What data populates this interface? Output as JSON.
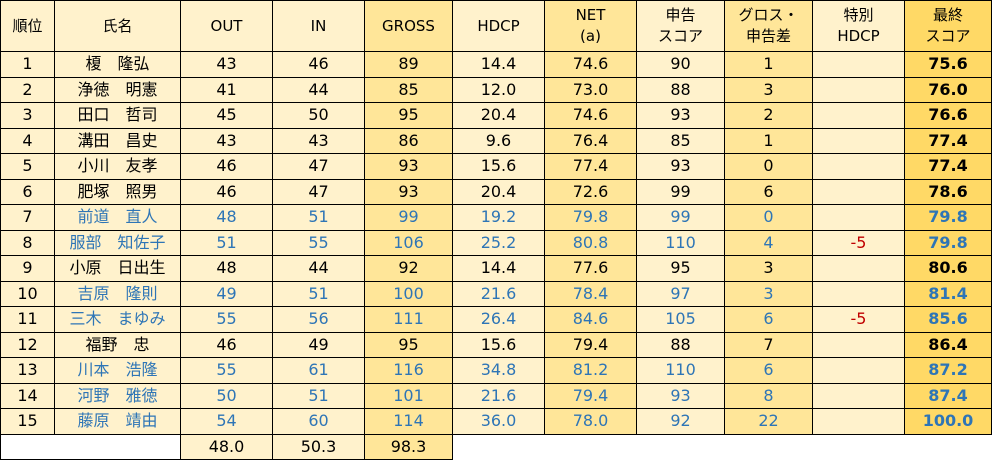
{
  "headers": {
    "rank": "順位",
    "name": "氏名",
    "out": "OUT",
    "in": "IN",
    "gross": "GROSS",
    "hdcp": "HDCP",
    "net_line1": "NET",
    "net_line2": "(a)",
    "declared_line1": "申告",
    "declared_line2": "スコア",
    "diff_line1": "グロス・",
    "diff_line2": "申告差",
    "special_line1": "特別",
    "special_line2": "HDCP",
    "final_line1": "最終",
    "final_line2": "スコア"
  },
  "rows": [
    {
      "rank": "1",
      "name": "榎　隆弘",
      "out": "43",
      "in": "46",
      "gross": "89",
      "hdcp": "14.4",
      "net": "74.6",
      "declared": "90",
      "diff": "1",
      "special": "",
      "final": "75.6",
      "blue": false
    },
    {
      "rank": "2",
      "name": "浄徳　明憲",
      "out": "41",
      "in": "44",
      "gross": "85",
      "hdcp": "12.0",
      "net": "73.0",
      "declared": "88",
      "diff": "3",
      "special": "",
      "final": "76.0",
      "blue": false
    },
    {
      "rank": "3",
      "name": "田口　哲司",
      "out": "45",
      "in": "50",
      "gross": "95",
      "hdcp": "20.4",
      "net": "74.6",
      "declared": "93",
      "diff": "2",
      "special": "",
      "final": "76.6",
      "blue": false
    },
    {
      "rank": "4",
      "name": "溝田　昌史",
      "out": "43",
      "in": "43",
      "gross": "86",
      "hdcp": "9.6",
      "net": "76.4",
      "declared": "85",
      "diff": "1",
      "special": "",
      "final": "77.4",
      "blue": false
    },
    {
      "rank": "5",
      "name": "小川　友孝",
      "out": "46",
      "in": "47",
      "gross": "93",
      "hdcp": "15.6",
      "net": "77.4",
      "declared": "93",
      "diff": "0",
      "special": "",
      "final": "77.4",
      "blue": false
    },
    {
      "rank": "6",
      "name": "肥塚　照男",
      "out": "46",
      "in": "47",
      "gross": "93",
      "hdcp": "20.4",
      "net": "72.6",
      "declared": "99",
      "diff": "6",
      "special": "",
      "final": "78.6",
      "blue": false
    },
    {
      "rank": "7",
      "name": "前道　直人",
      "out": "48",
      "in": "51",
      "gross": "99",
      "hdcp": "19.2",
      "net": "79.8",
      "declared": "99",
      "diff": "0",
      "special": "",
      "final": "79.8",
      "blue": true
    },
    {
      "rank": "8",
      "name": "服部　知佐子",
      "out": "51",
      "in": "55",
      "gross": "106",
      "hdcp": "25.2",
      "net": "80.8",
      "declared": "110",
      "diff": "4",
      "special": "-5",
      "final": "79.8",
      "blue": true
    },
    {
      "rank": "9",
      "name": "小原　日出生",
      "out": "48",
      "in": "44",
      "gross": "92",
      "hdcp": "14.4",
      "net": "77.6",
      "declared": "95",
      "diff": "3",
      "special": "",
      "final": "80.6",
      "blue": false
    },
    {
      "rank": "10",
      "name": "吉原　隆則",
      "out": "49",
      "in": "51",
      "gross": "100",
      "hdcp": "21.6",
      "net": "78.4",
      "declared": "97",
      "diff": "3",
      "special": "",
      "final": "81.4",
      "blue": true
    },
    {
      "rank": "11",
      "name": "三木　まゆみ",
      "out": "55",
      "in": "56",
      "gross": "111",
      "hdcp": "26.4",
      "net": "84.6",
      "declared": "105",
      "diff": "6",
      "special": "-5",
      "final": "85.6",
      "blue": true
    },
    {
      "rank": "12",
      "name": "福野　忠",
      "out": "46",
      "in": "49",
      "gross": "95",
      "hdcp": "15.6",
      "net": "79.4",
      "declared": "88",
      "diff": "7",
      "special": "",
      "final": "86.4",
      "blue": false
    },
    {
      "rank": "13",
      "name": "川本　浩隆",
      "out": "55",
      "in": "61",
      "gross": "116",
      "hdcp": "34.8",
      "net": "81.2",
      "declared": "110",
      "diff": "6",
      "special": "",
      "final": "87.2",
      "blue": true
    },
    {
      "rank": "14",
      "name": "河野　雅徳",
      "out": "50",
      "in": "51",
      "gross": "101",
      "hdcp": "21.6",
      "net": "79.4",
      "declared": "93",
      "diff": "8",
      "special": "",
      "final": "87.4",
      "blue": true
    },
    {
      "rank": "15",
      "name": "藤原　靖由",
      "out": "54",
      "in": "60",
      "gross": "114",
      "hdcp": "36.0",
      "net": "78.0",
      "declared": "92",
      "diff": "22",
      "special": "",
      "final": "100.0",
      "blue": true
    }
  ],
  "averages": {
    "out": "48.0",
    "in": "50.3",
    "gross": "98.3"
  },
  "colors": {
    "cell_bg": "#FFF2CC",
    "gross_bg": "#FFE699",
    "final_bg": "#FFD966",
    "guest_text": "#2E75B6",
    "special_text": "#C00000"
  }
}
